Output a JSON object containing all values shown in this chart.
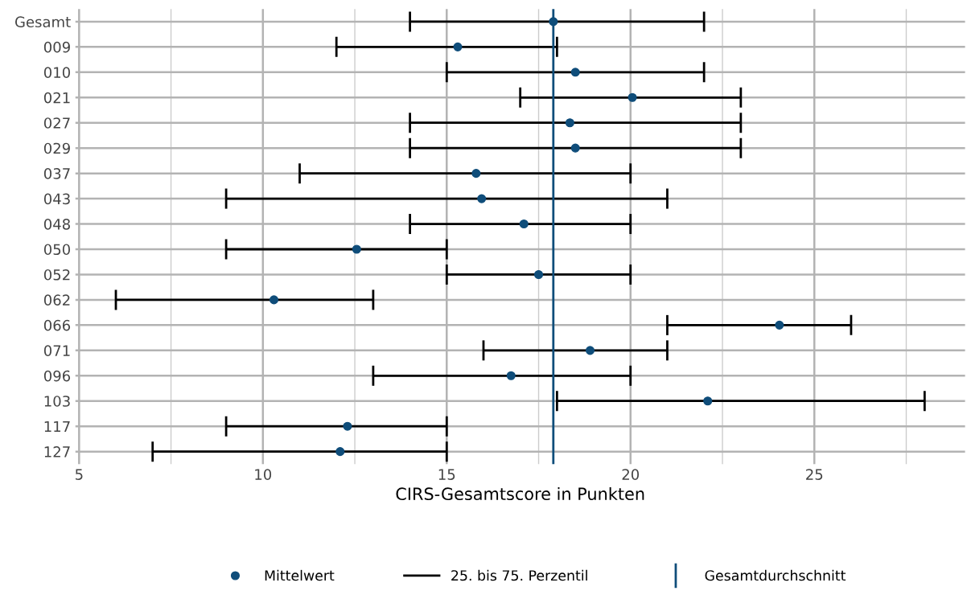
{
  "chart_data": {
    "type": "scatter",
    "orientation": "horizontal",
    "xlabel": "CIRS-Gesamtscore in Punkten",
    "categories": [
      "Gesamt",
      "009",
      "010",
      "021",
      "027",
      "029",
      "037",
      "043",
      "048",
      "050",
      "052",
      "062",
      "066",
      "071",
      "096",
      "103",
      "117",
      "127"
    ],
    "series": [
      {
        "name": "Mittelwert",
        "color": "#0f4d7a",
        "values": [
          17.9,
          15.3,
          18.5,
          20.05,
          18.35,
          18.5,
          15.8,
          15.95,
          17.1,
          12.55,
          17.5,
          10.3,
          24.05,
          18.9,
          16.75,
          22.1,
          12.3,
          12.1
        ],
        "errors": [
          [
            14,
            22
          ],
          [
            12,
            18
          ],
          [
            15,
            22
          ],
          [
            17,
            23
          ],
          [
            14,
            23
          ],
          [
            14,
            23
          ],
          [
            11,
            20
          ],
          [
            9,
            21
          ],
          [
            14,
            20
          ],
          [
            9,
            15
          ],
          [
            15,
            20
          ],
          [
            6,
            13
          ],
          [
            21,
            26
          ],
          [
            16,
            21
          ],
          [
            13,
            20
          ],
          [
            18,
            28
          ],
          [
            9,
            15
          ],
          [
            7,
            15
          ]
        ]
      }
    ],
    "annotations": [
      "25. bis 75. Perzentil"
    ],
    "ref_lines": [
      {
        "axis": "x",
        "value": 17.9,
        "label": "Gesamtdurchschnitt",
        "color": "#0f4d7a"
      }
    ],
    "xlim": [
      4.9,
      29.1
    ],
    "xticks": [
      5,
      10,
      15,
      20,
      25
    ],
    "grid": true,
    "legend": "bottom",
    "marker": "circle"
  }
}
